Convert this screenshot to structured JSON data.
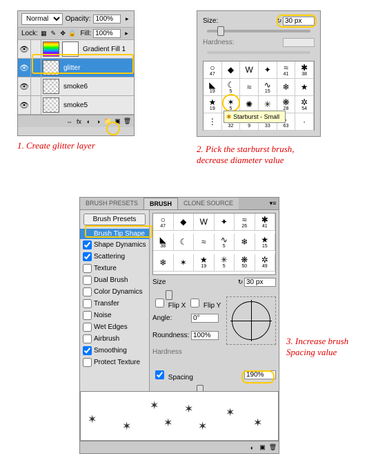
{
  "section1": {
    "blend_mode": "Normal",
    "opacity_label": "Opacity:",
    "opacity_value": "100%",
    "lock_label": "Lock:",
    "fill_label": "Fill:",
    "fill_value": "100%",
    "layers": [
      {
        "name": "Gradient Fill 1",
        "thumb": "grad"
      },
      {
        "name": "glitter",
        "thumb": "trans",
        "selected": true
      },
      {
        "name": "smoke6",
        "thumb": "trans"
      },
      {
        "name": "smoke5",
        "thumb": "trans"
      }
    ],
    "caption": "1. Create glitter layer"
  },
  "section2": {
    "size_label": "Size:",
    "size_value": "30 px",
    "hardness_label": "Hardness:",
    "brushes": [
      {
        "g": "○",
        "n": "47"
      },
      {
        "g": "◆",
        "n": ""
      },
      {
        "g": "W",
        "n": ""
      },
      {
        "g": "✦",
        "n": ""
      },
      {
        "g": "≈",
        "n": "41"
      },
      {
        "g": "✱",
        "n": "38"
      },
      {
        "g": "◣",
        "n": "19"
      },
      {
        "g": "☾",
        "n": "5"
      },
      {
        "g": "≈",
        "n": ""
      },
      {
        "g": "∿",
        "n": "15"
      },
      {
        "g": "❄",
        "n": ""
      },
      {
        "g": "★",
        "n": ""
      },
      {
        "g": "★",
        "n": "19"
      },
      {
        "g": "✶",
        "n": "5"
      },
      {
        "g": "✺",
        "n": ""
      },
      {
        "g": "✳",
        "n": ""
      },
      {
        "g": "❋",
        "n": "28"
      },
      {
        "g": "✲",
        "n": "54"
      },
      {
        "g": "⋮",
        "n": ""
      },
      {
        "g": "·",
        "n": "32"
      },
      {
        "g": "·",
        "n": "9"
      },
      {
        "g": "·",
        "n": "33"
      },
      {
        "g": "·",
        "n": "63"
      },
      {
        "g": "·",
        "n": ""
      }
    ],
    "tooltip": "Starburst - Small",
    "caption": "2. Pick the starburst brush, decrease diameter value"
  },
  "section3": {
    "tabs": [
      "BRUSH PRESETS",
      "BRUSH",
      "CLONE SOURCE"
    ],
    "presets_btn": "Brush Presets",
    "options": [
      {
        "label": "Brush Tip Shape",
        "selected": true,
        "cb": false
      },
      {
        "label": "Shape Dynamics",
        "cb": true,
        "checked": true
      },
      {
        "label": "Scattering",
        "cb": true,
        "checked": true
      },
      {
        "label": "Texture",
        "cb": true,
        "checked": false
      },
      {
        "label": "Dual Brush",
        "cb": true,
        "checked": false
      },
      {
        "label": "Color Dynamics",
        "cb": true,
        "checked": false
      },
      {
        "label": "Transfer",
        "cb": true,
        "checked": false
      },
      {
        "label": "Noise",
        "cb": true,
        "checked": false
      },
      {
        "label": "Wet Edges",
        "cb": true,
        "checked": false
      },
      {
        "label": "Airbrush",
        "cb": true,
        "checked": false
      },
      {
        "label": "Smoothing",
        "cb": true,
        "checked": true
      },
      {
        "label": "Protect Texture",
        "cb": true,
        "checked": false
      }
    ],
    "brushes2": [
      {
        "g": "○",
        "n": "47"
      },
      {
        "g": "◆",
        "n": ""
      },
      {
        "g": "W",
        "n": ""
      },
      {
        "g": "✦",
        "n": ""
      },
      {
        "g": "≈",
        "n": "26"
      },
      {
        "g": "✱",
        "n": "41"
      },
      {
        "g": "◣",
        "n": "38"
      },
      {
        "g": "☾",
        "n": ""
      },
      {
        "g": "≈",
        "n": ""
      },
      {
        "g": "∿",
        "n": "5"
      },
      {
        "g": "❄",
        "n": ""
      },
      {
        "g": "★",
        "n": "15"
      },
      {
        "g": "❄",
        "n": ""
      },
      {
        "g": "✶",
        "n": ""
      },
      {
        "g": "★",
        "n": "19"
      },
      {
        "g": "✳",
        "n": "5"
      },
      {
        "g": "❋",
        "n": "50"
      },
      {
        "g": "✲",
        "n": "49"
      }
    ],
    "size_label": "Size",
    "size_value": "30 px",
    "flipx": "Flip X",
    "flipy": "Flip Y",
    "angle_label": "Angle:",
    "angle_value": "0°",
    "round_label": "Roundness:",
    "round_value": "100%",
    "hardness_label": "Hardness",
    "spacing_label": "Spacing",
    "spacing_value": "190%",
    "caption": "3. Increase brush Spacing value"
  }
}
